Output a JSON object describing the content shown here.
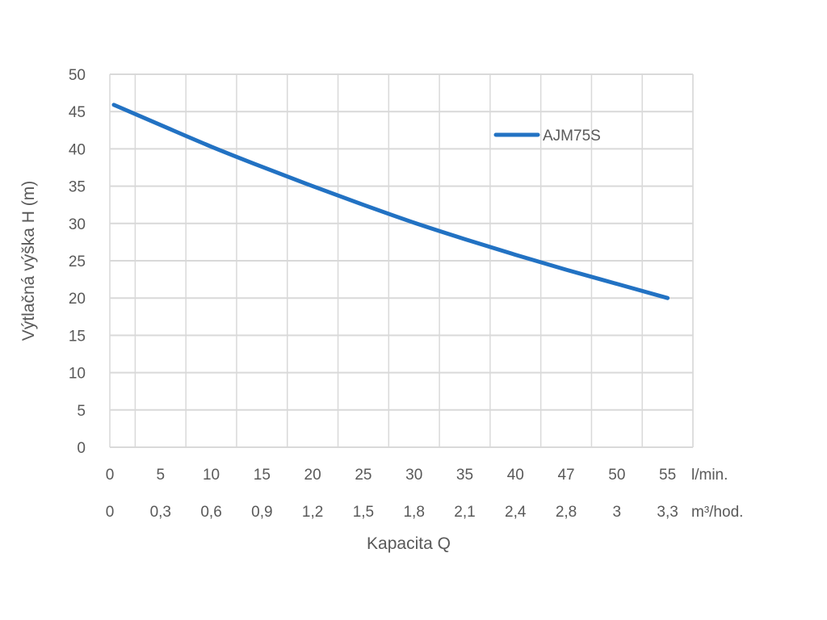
{
  "chart_data": {
    "type": "line",
    "title": "",
    "ylabel": "Výtlačná výška H (m)",
    "xlabel": "Kapacita Q",
    "ylim": [
      0,
      50
    ],
    "yticks": [
      "0",
      "5",
      "10",
      "15",
      "20",
      "25",
      "30",
      "35",
      "40",
      "45",
      "50"
    ],
    "x_rows": [
      {
        "unit": "l/min.",
        "ticks": [
          "0",
          "5",
          "10",
          "15",
          "20",
          "25",
          "30",
          "35",
          "40",
          "47",
          "50",
          "55"
        ]
      },
      {
        "unit": "m³/hod.",
        "ticks": [
          "0",
          "0,3",
          "0,6",
          "0,9",
          "1,2",
          "1,5",
          "1,8",
          "2,1",
          "2,4",
          "2,8",
          "3",
          "3,3"
        ]
      }
    ],
    "grid": true,
    "legend_position": "top-right",
    "series": [
      {
        "name": "AJM75S",
        "color": "#2272C3",
        "x": [
          0,
          5,
          10,
          15,
          20,
          25,
          30,
          35,
          40,
          47,
          50,
          55
        ],
        "y": [
          45.9,
          43.2,
          40.3,
          37.6,
          35.0,
          32.5,
          30.1,
          27.9,
          25.8,
          23.8,
          21.9,
          20.0
        ]
      }
    ]
  },
  "colors": {
    "grid": "#D9D9D9",
    "text": "#595959",
    "line": "#2272C3"
  }
}
